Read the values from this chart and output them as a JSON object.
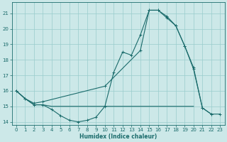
{
  "xlabel": "Humidex (Indice chaleur)",
  "xlim": [
    -0.5,
    23.5
  ],
  "ylim": [
    13.8,
    21.7
  ],
  "yticks": [
    14,
    15,
    16,
    17,
    18,
    19,
    20,
    21
  ],
  "xticks": [
    0,
    1,
    2,
    3,
    4,
    5,
    6,
    7,
    8,
    9,
    10,
    11,
    12,
    13,
    14,
    15,
    16,
    17,
    18,
    19,
    20,
    21,
    22,
    23
  ],
  "background_color": "#cce8e8",
  "grid_color": "#99cccc",
  "line_color": "#1a6b6b",
  "line1_x": [
    0,
    1,
    2,
    3,
    4,
    5,
    6,
    7,
    8,
    9,
    10,
    11,
    12,
    13,
    14,
    15,
    16,
    17,
    18,
    19,
    20,
    21,
    22
  ],
  "line1_y": [
    16.0,
    15.5,
    15.1,
    15.1,
    14.8,
    14.4,
    14.1,
    14.0,
    14.1,
    14.3,
    15.0,
    17.2,
    18.5,
    18.3,
    19.6,
    21.2,
    21.2,
    20.8,
    20.2,
    18.9,
    17.4,
    14.9,
    14.5
  ],
  "line2_x": [
    0,
    1,
    2,
    3,
    4,
    5,
    6,
    7,
    8,
    9,
    10,
    11,
    12,
    13,
    14,
    15,
    16,
    17,
    18,
    19,
    20
  ],
  "line2_y": [
    16.0,
    15.5,
    15.1,
    15.1,
    15.0,
    15.0,
    15.0,
    15.0,
    15.0,
    15.0,
    15.0,
    15.0,
    15.0,
    15.0,
    15.0,
    15.0,
    15.0,
    15.0,
    15.0,
    15.0,
    15.0
  ],
  "line3_x": [
    0,
    1,
    2,
    3,
    10,
    14,
    15,
    16,
    17,
    18,
    19,
    20,
    21,
    22,
    23
  ],
  "line3_y": [
    16.0,
    15.5,
    15.2,
    15.3,
    16.3,
    18.6,
    21.2,
    21.2,
    20.7,
    20.2,
    18.9,
    17.5,
    14.9,
    14.5,
    14.5
  ]
}
